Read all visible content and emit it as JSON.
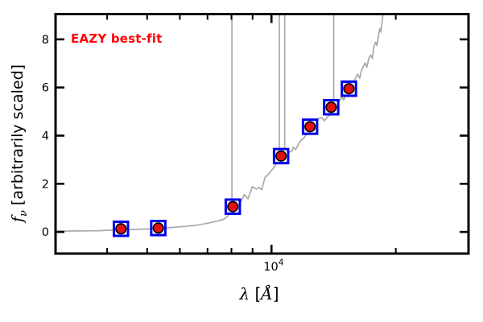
{
  "chart_data": {
    "type": "line",
    "description": "Best-fit galaxy SED: gray model spectrum with emission-line spikes, photometric points as red circles inside blue open squares",
    "annotation": "EAZY best-fit",
    "xlabel_parts": {
      "sym": "λ",
      "open": " [",
      "ang": "Å",
      "close": "]"
    },
    "ylabel_parts": {
      "sym": "f",
      "sub": "ν",
      "rest": " [arbitrarily scaled]"
    },
    "xscale": "log",
    "grid": false,
    "legend": "none",
    "xlim": [
      3000,
      30000
    ],
    "ylim": [
      -0.9,
      9.05
    ],
    "x_major_ticks": [
      {
        "value": 10000,
        "label_base": "10",
        "label_exp": "4"
      }
    ],
    "x_minor_ticks": [
      4000,
      5000,
      6000,
      7000,
      8000,
      9000,
      20000
    ],
    "y_major_ticks": [
      {
        "value": 0,
        "label": "0"
      },
      {
        "value": 2,
        "label": "2"
      },
      {
        "value": 4,
        "label": "4"
      },
      {
        "value": 6,
        "label": "6"
      },
      {
        "value": 8,
        "label": "8"
      }
    ],
    "series": [
      {
        "name": "model-spectrum",
        "type": "line",
        "color": "#a9a9a9",
        "points": [
          [
            3000,
            0.03
          ],
          [
            3400,
            0.04
          ],
          [
            3800,
            0.05
          ],
          [
            4200,
            0.08
          ],
          [
            4600,
            0.1
          ],
          [
            5000,
            0.12
          ],
          [
            5400,
            0.15
          ],
          [
            5800,
            0.19
          ],
          [
            6200,
            0.23
          ],
          [
            6600,
            0.28
          ],
          [
            7000,
            0.36
          ],
          [
            7200,
            0.4
          ],
          [
            7400,
            0.45
          ],
          [
            7650,
            0.52
          ],
          [
            7800,
            0.62
          ],
          [
            7950,
            0.8
          ],
          [
            8100,
            0.97
          ],
          [
            8250,
            1.1
          ],
          [
            8390,
            1.18
          ],
          [
            8600,
            1.55
          ],
          [
            8770,
            1.38
          ],
          [
            8990,
            1.88
          ],
          [
            9200,
            1.78
          ],
          [
            9330,
            1.85
          ],
          [
            9470,
            1.75
          ],
          [
            9650,
            2.28
          ],
          [
            9790,
            2.35
          ],
          [
            9920,
            2.48
          ],
          [
            10110,
            2.65
          ],
          [
            10370,
            2.95
          ],
          [
            10620,
            3.12
          ],
          [
            10980,
            3.28
          ],
          [
            11230,
            3.38
          ],
          [
            11290,
            3.52
          ],
          [
            11440,
            3.42
          ],
          [
            11650,
            3.68
          ],
          [
            11810,
            3.82
          ],
          [
            11960,
            3.88
          ],
          [
            12200,
            4.1
          ],
          [
            12500,
            4.4
          ],
          [
            12800,
            4.6
          ],
          [
            13050,
            4.72
          ],
          [
            13240,
            4.75
          ],
          [
            13420,
            4.62
          ],
          [
            13800,
            4.85
          ],
          [
            14200,
            5.2
          ],
          [
            14660,
            5.48
          ],
          [
            14780,
            5.62
          ],
          [
            14960,
            5.48
          ],
          [
            15140,
            5.72
          ],
          [
            15600,
            6.1
          ],
          [
            16060,
            6.45
          ],
          [
            16180,
            6.55
          ],
          [
            16360,
            6.38
          ],
          [
            16490,
            6.68
          ],
          [
            16670,
            6.85
          ],
          [
            16850,
            7.02
          ],
          [
            17030,
            6.85
          ],
          [
            17210,
            7.22
          ],
          [
            17390,
            7.35
          ],
          [
            17550,
            7.2
          ],
          [
            17690,
            7.68
          ],
          [
            17870,
            7.88
          ],
          [
            18000,
            7.75
          ],
          [
            18180,
            8.22
          ],
          [
            18290,
            8.45
          ],
          [
            18400,
            8.3
          ],
          [
            18540,
            8.78
          ],
          [
            18640,
            9.1
          ]
        ]
      },
      {
        "name": "photometry",
        "type": "scatter",
        "marker": "red-circle-in-blue-square",
        "points": [
          [
            4320,
            0.13
          ],
          [
            5320,
            0.16
          ],
          [
            8060,
            1.05
          ],
          [
            10550,
            3.15
          ],
          [
            12400,
            4.37
          ],
          [
            13950,
            5.18
          ],
          [
            15400,
            5.95
          ]
        ]
      }
    ],
    "emission_lines": [
      {
        "lambda": 8020,
        "flux_base": 0.9
      },
      {
        "lambda": 10450,
        "flux_base": 2.9
      },
      {
        "lambda": 10765,
        "flux_base": 3.1
      },
      {
        "lambda": 14150,
        "flux_base": 5.0
      }
    ],
    "colors": {
      "spectrum": "#a9a9a9",
      "marker_face": "#e31010",
      "marker_edge": "#000000",
      "square_edge": "#0000ee",
      "square_face": "#ffffff",
      "annotation": "#ff0000",
      "frame": "#000000",
      "tick_label": "#000000"
    }
  }
}
